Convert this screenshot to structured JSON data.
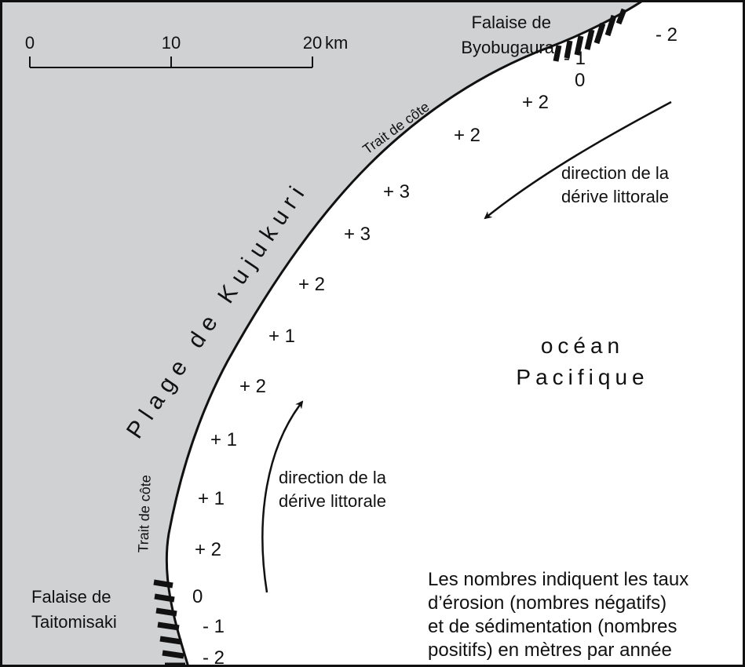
{
  "scale": {
    "ticks": [
      "0",
      "10",
      "20"
    ],
    "unit": "km"
  },
  "north_cliff": [
    "Falaise de",
    "Byobugaura"
  ],
  "south_cliff": [
    "Falaise de",
    "Taitomisaki"
  ],
  "beach": "Plage de Kujukuri",
  "coastline_labels": [
    "Trait de côte",
    "Trait de côte"
  ],
  "drift_labels": [
    [
      "direction de la",
      "dérive littorale"
    ],
    [
      "direction de la",
      "dérive littorale"
    ]
  ],
  "ocean": [
    "océan",
    "Pacifique"
  ],
  "rates": [
    "- 2",
    "- 1",
    "0",
    "+ 2",
    "+ 2",
    "+ 3",
    "+ 3",
    "+ 2",
    "+ 1",
    "+ 2",
    "+ 1",
    "+ 1",
    "+ 2",
    "0",
    "- 1",
    "- 2"
  ],
  "note": [
    "Les nombres indiquent les taux",
    "d’érosion (nombres négatifs)",
    "et de sédimentation (nombres",
    "positifs) en mètres par année"
  ]
}
